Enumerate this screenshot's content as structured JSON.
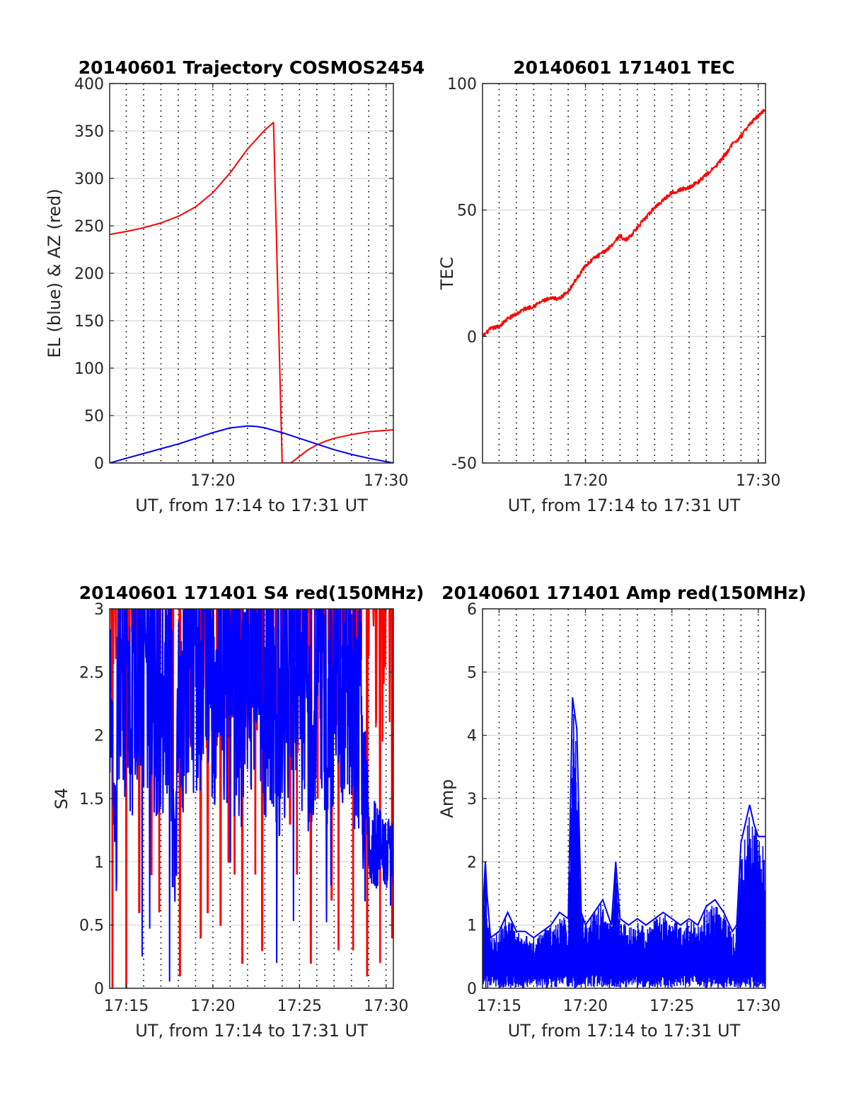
{
  "chart_data": [
    {
      "id": "p1",
      "type": "line",
      "title": "20140601 Trajectory COSMOS2454",
      "xlabel": "UT, from 17:14 to 17:31 UT",
      "ylabel": "EL (blue) & AZ (red)",
      "xlim": [
        17.234,
        17.507
      ],
      "ylim": [
        0,
        400
      ],
      "yticks": [
        0,
        50,
        100,
        150,
        200,
        250,
        300,
        350,
        400
      ],
      "ytick_labels": [
        "0",
        "50",
        "100",
        "150",
        "200",
        "250",
        "300",
        "350",
        "400"
      ],
      "xticks": [
        17.3333,
        17.5
      ],
      "xtick_labels": [
        "17:20",
        "17:30"
      ],
      "grid": true,
      "series": [
        {
          "color": "#ff0000",
          "kind": "line",
          "x": [
            17.234,
            17.25,
            17.2667,
            17.2833,
            17.3,
            17.3167,
            17.3333,
            17.35,
            17.3667,
            17.3833,
            17.3917,
            17.4,
            17.4083,
            17.4083,
            17.4167,
            17.425,
            17.4333,
            17.4417,
            17.45,
            17.4667,
            17.4833,
            17.507
          ],
          "y": [
            241,
            244,
            248,
            253,
            260,
            270,
            285,
            306,
            331,
            351,
            359,
            0,
            0,
            0,
            7,
            14,
            19,
            23,
            26,
            30,
            33,
            35
          ]
        },
        {
          "color": "#0000ff",
          "kind": "line",
          "x": [
            17.234,
            17.25,
            17.2667,
            17.2833,
            17.3,
            17.3167,
            17.3333,
            17.35,
            17.3583,
            17.3667,
            17.375,
            17.3833,
            17.3917,
            17.4,
            17.4167,
            17.4333,
            17.45,
            17.4667,
            17.4833,
            17.507
          ],
          "y": [
            0,
            5,
            10,
            15,
            20,
            26,
            32,
            37,
            38,
            39,
            38.5,
            37,
            34.5,
            32,
            26,
            20,
            14,
            9,
            5,
            0
          ]
        }
      ]
    },
    {
      "id": "p2",
      "type": "line",
      "title": "20140601 171401 TEC",
      "xlabel": "UT, from 17:14 to 17:31 UT",
      "ylabel": "TEC",
      "xlim": [
        17.234,
        17.507
      ],
      "ylim": [
        -50,
        100
      ],
      "yticks": [
        -50,
        0,
        50,
        100
      ],
      "ytick_labels": [
        "-50",
        "0",
        "50",
        "100"
      ],
      "xticks": [
        17.3333,
        17.5
      ],
      "xtick_labels": [
        "17:20",
        "17:30"
      ],
      "grid": true,
      "series": [
        {
          "color": "#ff0000",
          "kind": "line",
          "noise": 0.8,
          "x": [
            17.234,
            17.2417,
            17.25,
            17.2583,
            17.2667,
            17.275,
            17.2833,
            17.2917,
            17.3,
            17.3083,
            17.3167,
            17.325,
            17.3333,
            17.3417,
            17.35,
            17.3583,
            17.3667,
            17.3708,
            17.375,
            17.3833,
            17.3917,
            17.4,
            17.4083,
            17.4167,
            17.425,
            17.4333,
            17.4417,
            17.45,
            17.4583,
            17.4667,
            17.475,
            17.4833,
            17.4917,
            17.507
          ],
          "y": [
            0,
            3,
            4,
            7,
            9,
            11,
            12,
            14,
            15,
            15,
            18,
            23,
            28,
            31,
            33,
            36,
            40,
            38,
            39,
            43,
            47,
            51,
            54,
            57,
            58,
            59,
            61,
            64,
            67,
            71,
            76,
            79,
            84,
            90
          ]
        }
      ]
    },
    {
      "id": "p3",
      "type": "line",
      "title": "20140601 171401 S4 red(150MHz)",
      "xlabel": "UT, from 17:14 to 17:31 UT",
      "ylabel": "S4",
      "xlim": [
        17.234,
        17.507
      ],
      "ylim": [
        0,
        3
      ],
      "yticks": [
        0,
        0.5,
        1,
        1.5,
        2,
        2.5,
        3
      ],
      "ytick_labels": [
        "0",
        "0.5",
        "1",
        "1.5",
        "2",
        "2.5",
        "3"
      ],
      "xticks": [
        17.25,
        17.3333,
        17.4167,
        17.5
      ],
      "xtick_labels": [
        "17:15",
        "17:20",
        "17:25",
        "17:30"
      ],
      "grid": true,
      "series": [
        {
          "color": "#ff0000",
          "kind": "spikes",
          "x": [
            17.2367,
            17.2425,
            17.25,
            17.2583,
            17.2625,
            17.2683,
            17.2742,
            17.2817,
            17.2875,
            17.295,
            17.3017,
            17.3083,
            17.3142,
            17.3217,
            17.3283,
            17.3342,
            17.3408,
            17.3483,
            17.3542,
            17.3617,
            17.3683,
            17.3742,
            17.3808,
            17.3875,
            17.3942,
            17.4017,
            17.4075,
            17.4142,
            17.4208,
            17.4275,
            17.4342,
            17.4408,
            17.4475,
            17.4542,
            17.4608,
            17.4683,
            17.4742,
            17.4817,
            17.4875,
            17.4942,
            17.5008,
            17.5058
          ],
          "y": [
            0,
            3,
            0,
            3,
            0.6,
            3,
            0.9,
            0.6,
            3,
            0.8,
            0.1,
            3,
            2.2,
            0.4,
            0.6,
            3,
            0.5,
            1.0,
            0.9,
            0.2,
            3,
            0.9,
            0.3,
            3,
            2.0,
            3,
            1.3,
            0.9,
            3,
            0.2,
            1.5,
            2.4,
            0.7,
            0.3,
            3,
            0.3,
            3,
            0.1,
            3,
            0.2,
            3,
            0.4
          ]
        },
        {
          "color": "#0000ff",
          "kind": "noisy",
          "x": [
            17.234,
            17.2383,
            17.2433,
            17.25,
            17.2583,
            17.2667,
            17.275,
            17.2833,
            17.2917,
            17.2967,
            17.3,
            17.3083,
            17.3167,
            17.325,
            17.3333,
            17.3417,
            17.35,
            17.3583,
            17.3667,
            17.375,
            17.3833,
            17.3917,
            17.4,
            17.4083,
            17.4167,
            17.425,
            17.4333,
            17.4417,
            17.45,
            17.4583,
            17.4667,
            17.4708,
            17.475,
            17.4833,
            17.4917,
            17.5,
            17.507
          ],
          "y": [
            2.3,
            1.3,
            2.6,
            2.5,
            2.4,
            2.6,
            2.5,
            2.3,
            2.6,
            0.8,
            2.5,
            2.4,
            2.6,
            2.7,
            2.5,
            2.4,
            2.6,
            2.3,
            2.5,
            2.6,
            2.4,
            2.5,
            2.2,
            2.4,
            2.5,
            2.3,
            2.5,
            2.4,
            2.2,
            2.5,
            2.6,
            1.9,
            2.4,
            1.2,
            1.1,
            1.0,
            1.0
          ]
        }
      ]
    },
    {
      "id": "p4",
      "type": "line",
      "title": "20140601 171401 Amp red(150MHz)",
      "xlabel": "UT, from 17:14 to 17:31 UT",
      "ylabel": "Amp",
      "xlim": [
        17.234,
        17.507
      ],
      "ylim": [
        0,
        6
      ],
      "yticks": [
        0,
        1,
        2,
        3,
        4,
        5,
        6
      ],
      "ytick_labels": [
        "0",
        "1",
        "2",
        "3",
        "4",
        "5",
        "6"
      ],
      "xticks": [
        17.25,
        17.3333,
        17.4167,
        17.5
      ],
      "xtick_labels": [
        "17:15",
        "17:20",
        "17:25",
        "17:30"
      ],
      "grid": true,
      "series": [
        {
          "color": "#0000ff",
          "kind": "envelope",
          "x": [
            17.234,
            17.2367,
            17.2383,
            17.2417,
            17.25,
            17.2583,
            17.2667,
            17.275,
            17.2833,
            17.2917,
            17.3,
            17.3083,
            17.3167,
            17.3208,
            17.325,
            17.3292,
            17.3333,
            17.3417,
            17.35,
            17.3583,
            17.3625,
            17.3667,
            17.375,
            17.3833,
            17.3917,
            17.4,
            17.4083,
            17.4167,
            17.425,
            17.4333,
            17.4417,
            17.45,
            17.4583,
            17.4667,
            17.475,
            17.4792,
            17.4833,
            17.4875,
            17.4917,
            17.4958,
            17.5,
            17.507
          ],
          "y": [
            1.1,
            2.0,
            1.5,
            0.8,
            0.9,
            1.2,
            0.9,
            0.9,
            0.8,
            0.9,
            1.0,
            1.2,
            1.1,
            4.6,
            4.1,
            1.2,
            1.0,
            1.2,
            1.4,
            1.0,
            2.0,
            1.1,
            1.0,
            1.1,
            1.0,
            1.1,
            1.2,
            1.1,
            1.0,
            1.1,
            1.0,
            1.3,
            1.4,
            1.2,
            0.9,
            1.0,
            2.3,
            2.6,
            2.9,
            2.6,
            2.4,
            2.4
          ]
        }
      ]
    }
  ]
}
